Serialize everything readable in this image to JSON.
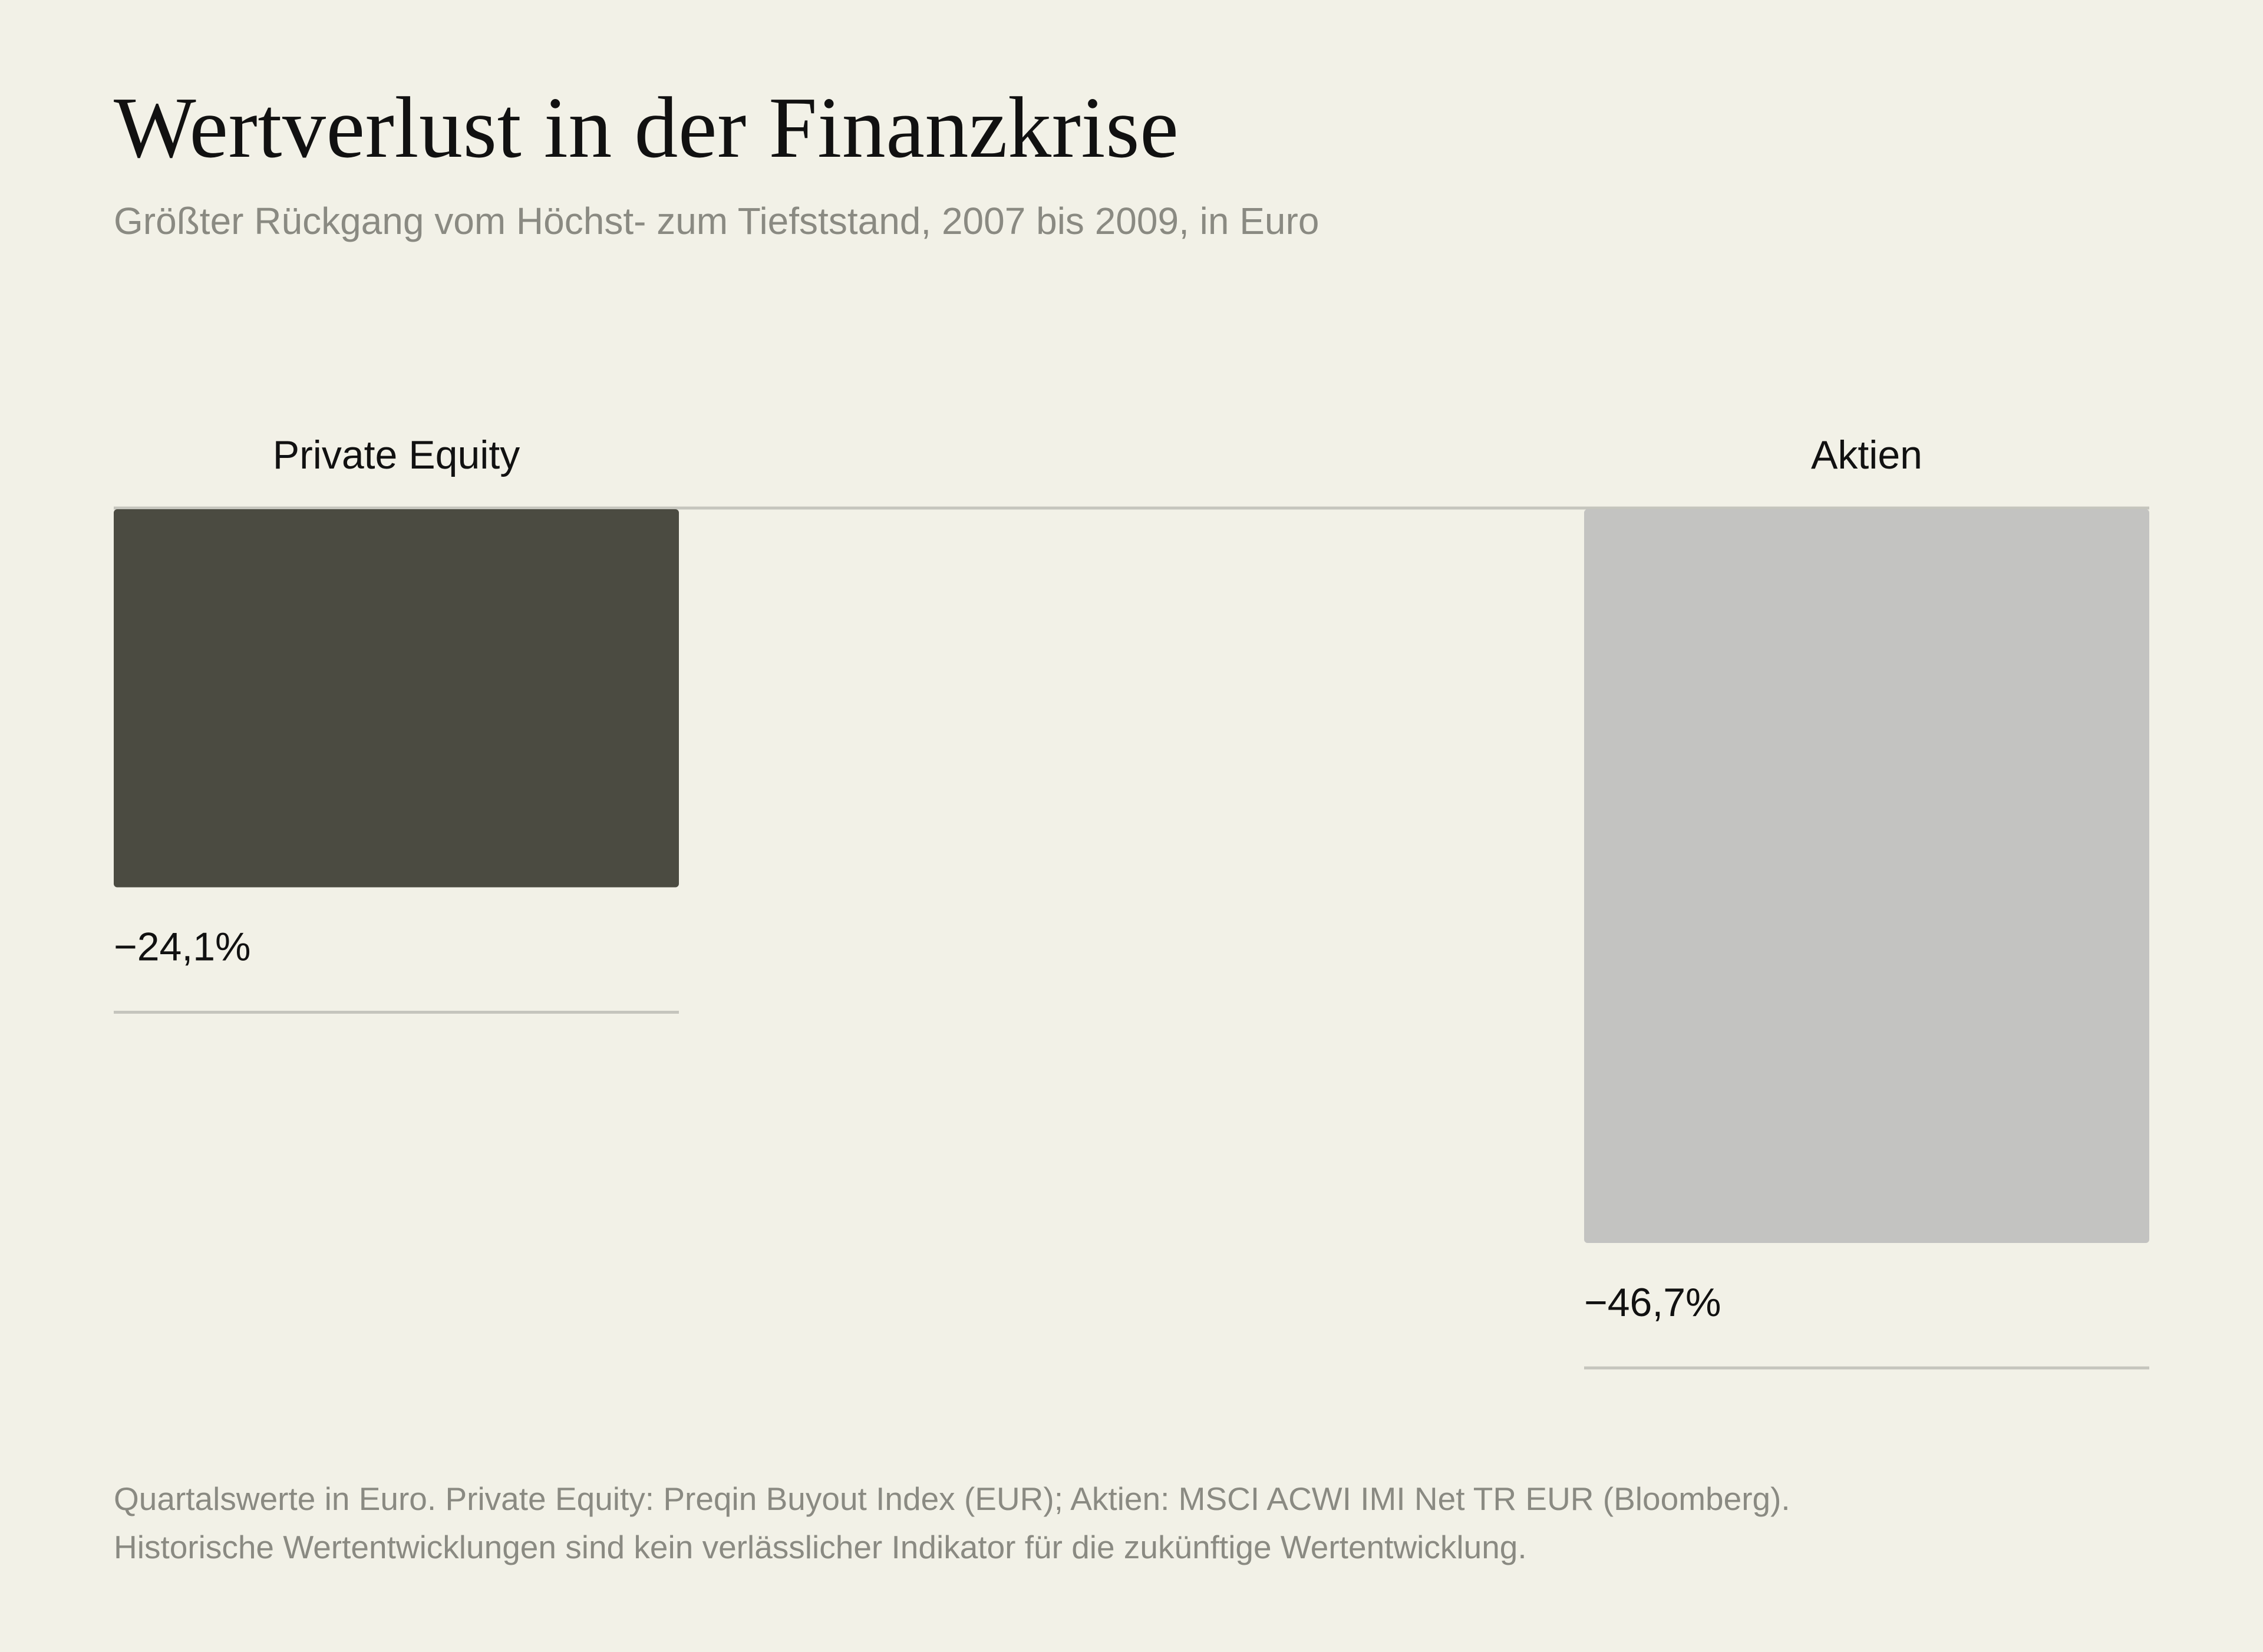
{
  "header": {
    "title": "Wertverlust in der Finanzkrise",
    "subtitle": "Größter Rückgang vom Höchst- zum Tiefststand, 2007 bis 2009, in Euro"
  },
  "chart_data": {
    "type": "bar",
    "orientation": "vertical-downward",
    "categories": [
      "Private Equity",
      "Aktien"
    ],
    "values": [
      -24.1,
      -46.7
    ],
    "value_labels": [
      "−24,1%",
      "−46,7%"
    ],
    "unit": "%",
    "title": "Wertverlust in der Finanzkrise",
    "subtitle": "Größter Rückgang vom Höchst- zum Tiefststand, 2007 bis 2009, in Euro",
    "xlabel": "",
    "ylabel": "",
    "grid": false,
    "legend": "none",
    "colors": [
      "#4b4b41",
      "#c3c3c1"
    ]
  },
  "footnote": {
    "line1": "Quartalswerte in Euro. Private Equity: Preqin Buyout Index (EUR); Aktien: MSCI ACWI IMI Net TR EUR (Bloomberg).",
    "line2": "Historische Wertentwicklungen sind kein verlässlicher Indikator für die zukünftige Wertentwicklung."
  },
  "colors": {
    "background": "#f2f1e7",
    "text": "#111111",
    "muted_text": "#8a8a82",
    "rule": "#c5c5bd"
  }
}
